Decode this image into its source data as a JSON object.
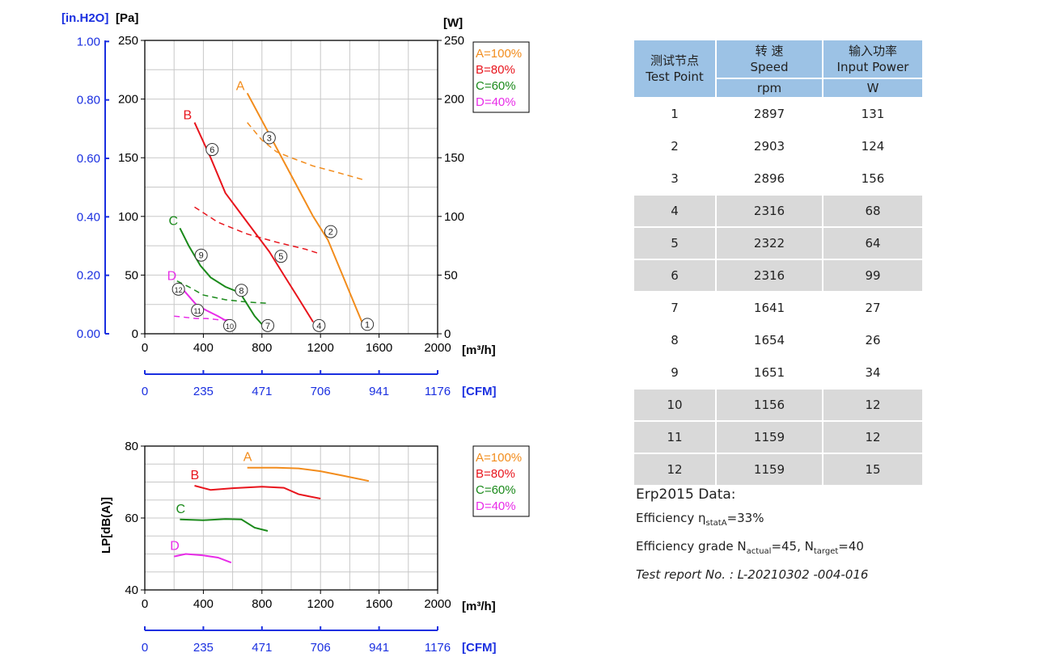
{
  "chart_data": [
    {
      "type": "line",
      "name_ref": "performance",
      "x_unit": "[m³/h]",
      "x_ticks": [
        0,
        400,
        800,
        1200,
        1600,
        2000
      ],
      "cfm_unit": "[CFM]",
      "cfm_ticks": [
        "0",
        "235",
        "471",
        "706",
        "941",
        "1176"
      ],
      "y_left_unit": "[Pa]",
      "y_left_ticks": [
        0,
        50,
        100,
        150,
        200,
        250
      ],
      "y_inh2o_unit": "[in.H2O]",
      "y_inh2o_ticks": [
        "0.00",
        "0.20",
        "0.40",
        "0.60",
        "0.80",
        "1.00"
      ],
      "y_right_unit": "[W]",
      "y_right_ticks": [
        0,
        50,
        100,
        150,
        200,
        250
      ],
      "xlim": [
        0,
        2000
      ],
      "ylim": [
        0,
        250
      ],
      "grid": true,
      "legend_position": "top-right",
      "series": [
        {
          "name": "A=100%",
          "label": "A",
          "color": "#f28c1c",
          "pressure": [
            [
              700,
              205
            ],
            [
              850,
              170
            ],
            [
              1000,
              135
            ],
            [
              1150,
              100
            ],
            [
              1250,
              80
            ],
            [
              1350,
              50
            ],
            [
              1450,
              20
            ],
            [
              1500,
              5
            ]
          ],
          "power": [
            [
              700,
              180
            ],
            [
              800,
              165
            ],
            [
              900,
              155
            ],
            [
              1000,
              150
            ],
            [
              1150,
              143
            ],
            [
              1300,
              138
            ],
            [
              1500,
              131
            ]
          ]
        },
        {
          "name": "B=80%",
          "label": "B",
          "color": "#e8141c",
          "pressure": [
            [
              340,
              180
            ],
            [
              450,
              150
            ],
            [
              550,
              120
            ],
            [
              700,
              95
            ],
            [
              850,
              70
            ],
            [
              950,
              50
            ],
            [
              1050,
              30
            ],
            [
              1150,
              10
            ]
          ],
          "power": [
            [
              340,
              108
            ],
            [
              500,
              95
            ],
            [
              700,
              85
            ],
            [
              900,
              78
            ],
            [
              1100,
              72
            ],
            [
              1200,
              68
            ]
          ]
        },
        {
          "name": "C=60%",
          "label": "C",
          "color": "#1b8a1b",
          "pressure": [
            [
              240,
              90
            ],
            [
              300,
              75
            ],
            [
              380,
              58
            ],
            [
              450,
              48
            ],
            [
              550,
              40
            ],
            [
              650,
              35
            ],
            [
              750,
              15
            ],
            [
              800,
              8
            ]
          ],
          "power": [
            [
              220,
              45
            ],
            [
              300,
              40
            ],
            [
              400,
              33
            ],
            [
              550,
              29
            ],
            [
              700,
              27
            ],
            [
              830,
              26
            ]
          ]
        },
        {
          "name": "D=40%",
          "label": "D",
          "color": "#e82ce8",
          "pressure": [
            [
              230,
              43
            ],
            [
              280,
              35
            ],
            [
              350,
              25
            ],
            [
              420,
              20
            ],
            [
              500,
              15
            ],
            [
              570,
              10
            ]
          ],
          "power": [
            [
              200,
              15
            ],
            [
              280,
              14
            ],
            [
              350,
              13
            ],
            [
              420,
              13
            ],
            [
              500,
              12
            ],
            [
              570,
              12
            ]
          ]
        }
      ],
      "test_points": [
        {
          "n": 1,
          "x": 1520,
          "y": 8
        },
        {
          "n": 2,
          "x": 1270,
          "y": 87
        },
        {
          "n": 3,
          "x": 850,
          "y": 167
        },
        {
          "n": 4,
          "x": 1190,
          "y": 7
        },
        {
          "n": 5,
          "x": 930,
          "y": 66
        },
        {
          "n": 6,
          "x": 460,
          "y": 157
        },
        {
          "n": 7,
          "x": 840,
          "y": 7
        },
        {
          "n": 8,
          "x": 660,
          "y": 37
        },
        {
          "n": 9,
          "x": 385,
          "y": 67
        },
        {
          "n": 10,
          "x": 580,
          "y": 7
        },
        {
          "n": 11,
          "x": 360,
          "y": 20
        },
        {
          "n": 12,
          "x": 230,
          "y": 38
        }
      ]
    },
    {
      "type": "line",
      "name_ref": "noise",
      "ylabel": "LP[dB(A)]",
      "x_unit": "[m³/h]",
      "x_ticks": [
        0,
        400,
        800,
        1200,
        1600,
        2000
      ],
      "cfm_unit": "[CFM]",
      "cfm_ticks": [
        "0",
        "235",
        "471",
        "706",
        "941",
        "1176"
      ],
      "y_ticks": [
        40,
        60,
        80
      ],
      "xlim": [
        0,
        2000
      ],
      "ylim": [
        40,
        80
      ],
      "grid": true,
      "legend_position": "top-right",
      "series": [
        {
          "name": "A=100%",
          "label": "A",
          "color": "#f28c1c",
          "values": [
            [
              700,
              74
            ],
            [
              900,
              74
            ],
            [
              1050,
              73.8
            ],
            [
              1200,
              73
            ],
            [
              1350,
              71.8
            ],
            [
              1530,
              70.3
            ]
          ]
        },
        {
          "name": "B=80%",
          "label": "B",
          "color": "#e8141c",
          "values": [
            [
              340,
              69
            ],
            [
              450,
              67.8
            ],
            [
              600,
              68.3
            ],
            [
              800,
              68.7
            ],
            [
              950,
              68.4
            ],
            [
              1050,
              66.6
            ],
            [
              1200,
              65.4
            ]
          ]
        },
        {
          "name": "C=60%",
          "label": "C",
          "color": "#1b8a1b",
          "values": [
            [
              240,
              59.6
            ],
            [
              400,
              59.4
            ],
            [
              550,
              59.7
            ],
            [
              660,
              59.6
            ],
            [
              750,
              57.3
            ],
            [
              840,
              56.4
            ]
          ]
        },
        {
          "name": "D=40%",
          "label": "D",
          "color": "#e82ce8",
          "values": [
            [
              200,
              49.3
            ],
            [
              280,
              50
            ],
            [
              400,
              49.6
            ],
            [
              500,
              49
            ],
            [
              590,
              47.6
            ]
          ]
        }
      ]
    }
  ],
  "table": {
    "headers": [
      {
        "cn": "测试节点",
        "en": "Test Point",
        "unit": ""
      },
      {
        "cn": "转 速",
        "en": "Speed",
        "unit": "rpm"
      },
      {
        "cn": "输入功率",
        "en": "Input Power",
        "unit": "W"
      }
    ],
    "rows": [
      {
        "point": "1",
        "speed": "2897",
        "power": "131"
      },
      {
        "point": "2",
        "speed": "2903",
        "power": "124"
      },
      {
        "point": "3",
        "speed": "2896",
        "power": "156"
      },
      {
        "point": "4",
        "speed": "2316",
        "power": "68"
      },
      {
        "point": "5",
        "speed": "2322",
        "power": "64"
      },
      {
        "point": "6",
        "speed": "2316",
        "power": "99"
      },
      {
        "point": "7",
        "speed": "1641",
        "power": "27"
      },
      {
        "point": "8",
        "speed": "1654",
        "power": "26"
      },
      {
        "point": "9",
        "speed": "1651",
        "power": "34"
      },
      {
        "point": "10",
        "speed": "1156",
        "power": "12"
      },
      {
        "point": "11",
        "speed": "1159",
        "power": "12"
      },
      {
        "point": "12",
        "speed": "1159",
        "power": "15"
      }
    ]
  },
  "erp": {
    "heading": "Erp2015 Data:",
    "efficiency_label": "Efficiency η",
    "efficiency_sub": "statA",
    "efficiency_value": "=33%",
    "grade_label": "Efficiency grade  N",
    "grade_sub1": "actual",
    "grade_mid": "=45, N",
    "grade_sub2": "target",
    "grade_end": "=40",
    "report": "Test report No. : L-20210302 -004-016"
  }
}
